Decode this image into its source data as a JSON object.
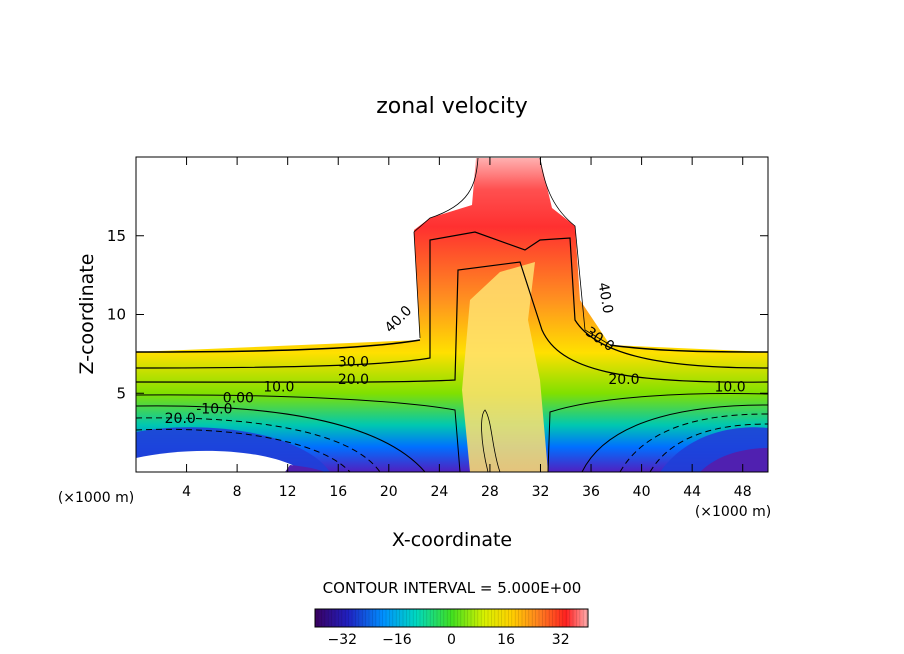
{
  "chart_data": {
    "type": "contour",
    "title": "zonal velocity",
    "xlabel": "X-coordinate",
    "ylabel": "Z-coordinate",
    "x_unit_label": "(×1000 m)",
    "x_range": [
      0,
      50
    ],
    "z_range": [
      0,
      20
    ],
    "x_ticks": [
      4,
      8,
      12,
      16,
      20,
      24,
      28,
      32,
      36,
      40,
      44,
      48
    ],
    "z_ticks": [
      5,
      10,
      15
    ],
    "contour_interval_text": "CONTOUR INTERVAL = 5.000E+00",
    "contour_labels": [
      {
        "text": "40.0",
        "x": 21,
        "z": 9.5,
        "angle": -45
      },
      {
        "text": "40.0",
        "x": 36.8,
        "z": 11,
        "angle": 80
      },
      {
        "text": "30.0",
        "x": 17.2,
        "z": 6.7,
        "angle": 0
      },
      {
        "text": "30.0",
        "x": 36.5,
        "z": 8.2,
        "angle": 35
      },
      {
        "text": "20.0",
        "x": 17.2,
        "z": 5.6,
        "angle": 0
      },
      {
        "text": "20.0",
        "x": 38.6,
        "z": 5.6,
        "angle": 0
      },
      {
        "text": "10.0",
        "x": 11.3,
        "z": 5.1,
        "angle": 0
      },
      {
        "text": "10.0",
        "x": 47,
        "z": 5.1,
        "angle": 0
      },
      {
        "text": "0.00",
        "x": 8.1,
        "z": 4.4,
        "angle": 0
      },
      {
        "text": "-10.0",
        "x": 6.2,
        "z": 3.7,
        "angle": 0
      },
      {
        "text": "20.0",
        "x": 3.5,
        "z": 3.1,
        "angle": 0
      }
    ],
    "colorbar": {
      "range": [
        -40,
        40
      ],
      "ticks": [
        -32,
        -16,
        0,
        16,
        32
      ],
      "tick_labels": [
        "−32",
        "−16",
        "0",
        "16",
        "32"
      ]
    },
    "grid": false
  }
}
